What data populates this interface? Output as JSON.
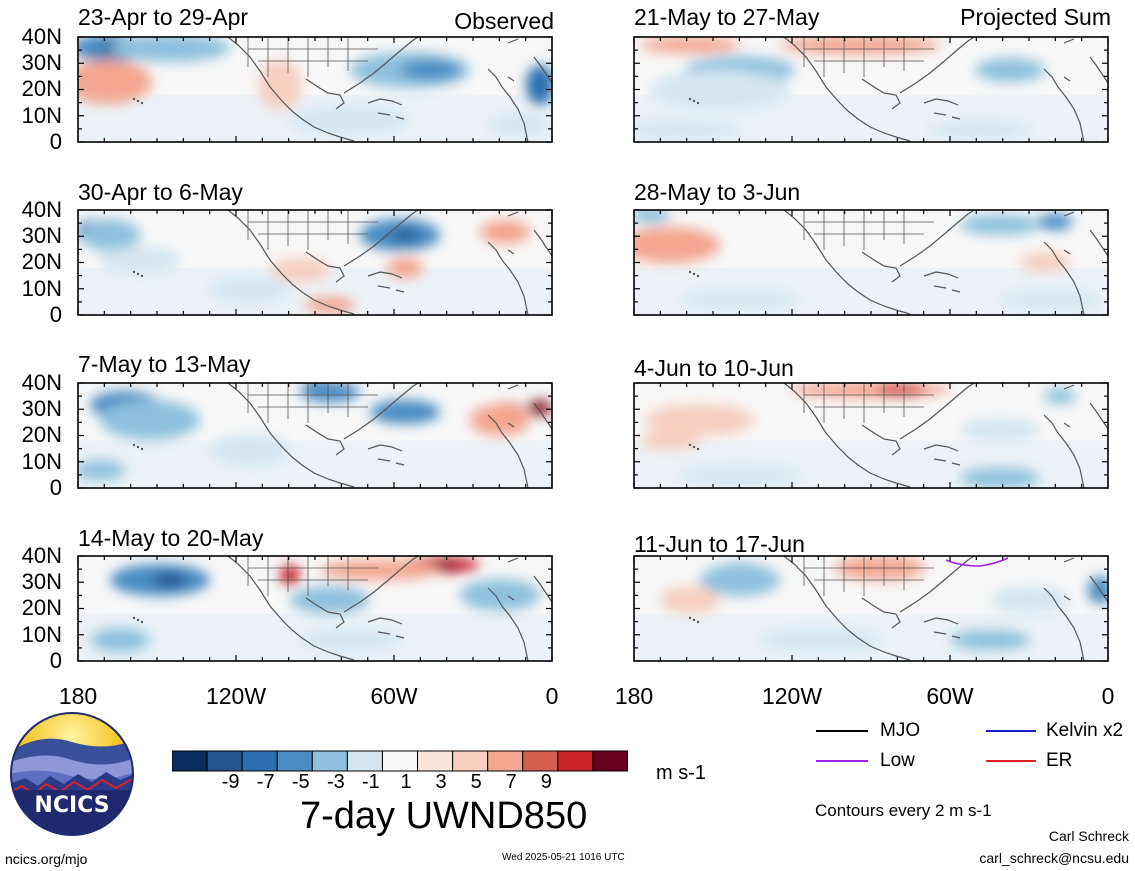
{
  "column_titles": {
    "left": "Observed",
    "right": "Projected Sum"
  },
  "panels": [
    {
      "title": "23-Apr to 29-Apr",
      "col": 0,
      "row": 0,
      "blobs": [
        [
          "#4a8cc3",
          110,
          48,
          38,
          14
        ],
        [
          "#23548f",
          115,
          48,
          14,
          7
        ],
        [
          "#c9242b",
          105,
          82,
          35,
          17
        ],
        [
          "#f3a690",
          108,
          82,
          44,
          22
        ],
        [
          "#8ec1dd",
          170,
          48,
          60,
          14
        ],
        [
          "#8ec1dd",
          410,
          70,
          60,
          18
        ],
        [
          "#4a8cc3",
          430,
          70,
          30,
          10
        ],
        [
          "#2c6fb0",
          540,
          85,
          14,
          20
        ],
        [
          "#f6cfbf",
          280,
          85,
          22,
          25
        ],
        [
          "#d4e6f1",
          350,
          120,
          60,
          15
        ],
        [
          "#d4e6f1",
          520,
          125,
          30,
          12
        ]
      ]
    },
    {
      "title": "30-Apr to 6-May",
      "col": 0,
      "row": 1,
      "blobs": [
        [
          "#2c6fb0",
          92,
          232,
          16,
          12
        ],
        [
          "#8ec1dd",
          110,
          235,
          30,
          16
        ],
        [
          "#d4e6f1",
          140,
          260,
          40,
          14
        ],
        [
          "#4a8cc3",
          400,
          235,
          40,
          16
        ],
        [
          "#23548f",
          405,
          235,
          14,
          6
        ],
        [
          "#f3a690",
          505,
          232,
          25,
          12
        ],
        [
          "#f3a690",
          405,
          268,
          18,
          10
        ],
        [
          "#f3a690",
          330,
          305,
          25,
          8
        ],
        [
          "#d4e6f1",
          250,
          290,
          40,
          14
        ],
        [
          "#f6cfbf",
          300,
          270,
          30,
          12
        ]
      ]
    },
    {
      "title": "7-May to 13-May",
      "col": 0,
      "row": 2,
      "blobs": [
        [
          "#4a8cc3",
          125,
          405,
          35,
          14
        ],
        [
          "#8ec1dd",
          150,
          420,
          50,
          20
        ],
        [
          "#23548f",
          320,
          388,
          16,
          8
        ],
        [
          "#4a8cc3",
          330,
          392,
          30,
          10
        ],
        [
          "#4a8cc3",
          405,
          412,
          35,
          12
        ],
        [
          "#c9242b",
          505,
          413,
          22,
          10
        ],
        [
          "#f3a690",
          500,
          420,
          30,
          16
        ],
        [
          "#8b1a2a",
          540,
          408,
          12,
          8
        ],
        [
          "#d4e6f1",
          250,
          450,
          40,
          16
        ],
        [
          "#8ec1dd",
          100,
          470,
          25,
          10
        ]
      ]
    },
    {
      "title": "14-May to 20-May",
      "col": 0,
      "row": 3,
      "blobs": [
        [
          "#4a8cc3",
          160,
          580,
          50,
          16
        ],
        [
          "#23548f",
          170,
          580,
          18,
          7
        ],
        [
          "#c9242b",
          440,
          565,
          40,
          8
        ],
        [
          "#8b1a2a",
          445,
          565,
          15,
          5
        ],
        [
          "#f3a690",
          380,
          570,
          60,
          10
        ],
        [
          "#c9242b",
          290,
          575,
          10,
          10
        ],
        [
          "#8ec1dd",
          330,
          600,
          40,
          14
        ],
        [
          "#8ec1dd",
          500,
          595,
          40,
          16
        ],
        [
          "#8ec1dd",
          120,
          640,
          30,
          12
        ],
        [
          "#d4e6f1",
          350,
          640,
          50,
          12
        ]
      ]
    },
    {
      "title": "21-May to 27-May",
      "col": 1,
      "row": 0,
      "blobs": [
        [
          "#f3a690",
          690,
          45,
          50,
          8
        ],
        [
          "#f3a690",
          860,
          45,
          80,
          9
        ],
        [
          "#8ec1dd",
          740,
          70,
          55,
          14
        ],
        [
          "#d4e6f1",
          720,
          90,
          70,
          20
        ],
        [
          "#8ec1dd",
          1010,
          70,
          35,
          12
        ],
        [
          "#d4e6f1",
          680,
          130,
          60,
          10
        ],
        [
          "#d4e6f1",
          980,
          130,
          50,
          10
        ]
      ]
    },
    {
      "title": "28-May to 3-Jun",
      "col": 1,
      "row": 1,
      "blobs": [
        [
          "#c9242b",
          680,
          240,
          30,
          10
        ],
        [
          "#f3a690",
          670,
          245,
          50,
          18
        ],
        [
          "#8ec1dd",
          650,
          215,
          20,
          8
        ],
        [
          "#4a8cc3",
          1055,
          222,
          18,
          8
        ],
        [
          "#8ec1dd",
          1000,
          225,
          40,
          10
        ],
        [
          "#f6cfbf",
          1045,
          262,
          25,
          10
        ],
        [
          "#d4e6f1",
          740,
          300,
          60,
          10
        ],
        [
          "#d4e6f1",
          1050,
          300,
          50,
          10
        ]
      ]
    },
    {
      "title": "4-Jun to 10-Jun",
      "col": 1,
      "row": 2,
      "blobs": [
        [
          "#f3a690",
          870,
          390,
          80,
          8
        ],
        [
          "#c9242b",
          900,
          390,
          25,
          5
        ],
        [
          "#8ec1dd",
          1060,
          396,
          16,
          8
        ],
        [
          "#f6cfbf",
          700,
          420,
          55,
          16
        ],
        [
          "#f6cfbf",
          670,
          440,
          30,
          10
        ],
        [
          "#d4e6f1",
          1000,
          430,
          40,
          12
        ],
        [
          "#d4e6f1",
          740,
          475,
          60,
          10
        ],
        [
          "#8ec1dd",
          1000,
          478,
          40,
          10
        ]
      ]
    },
    {
      "title": "11-Jun to 17-Jun",
      "col": 1,
      "row": 3,
      "blobs": [
        [
          "#4a8cc3",
          740,
          575,
          28,
          12
        ],
        [
          "#8ec1dd",
          740,
          580,
          40,
          16
        ],
        [
          "#c9242b",
          885,
          565,
          20,
          8
        ],
        [
          "#f3a690",
          880,
          568,
          45,
          12
        ],
        [
          "#f6cfbf",
          690,
          600,
          30,
          14
        ],
        [
          "#4a8cc3",
          1100,
          590,
          12,
          14
        ],
        [
          "#d4e6f1",
          1030,
          600,
          40,
          14
        ],
        [
          "#d4e6f1",
          820,
          640,
          60,
          12
        ],
        [
          "#8ec1dd",
          990,
          640,
          40,
          10
        ]
      ]
    }
  ],
  "y_labels": [
    "40N",
    "30N",
    "20N",
    "10N",
    "0"
  ],
  "x_labels": [
    "180",
    "120W",
    "60W",
    "0"
  ],
  "colorbar": {
    "colors": [
      "#0b2c5e",
      "#23548f",
      "#2c6fb0",
      "#4a8cc3",
      "#8ec1dd",
      "#d4e6f1",
      "#f7f7f7",
      "#fbe4d8",
      "#f6cfbf",
      "#f3a690",
      "#d6604d",
      "#c9242b",
      "#67001f"
    ],
    "labels": [
      "-9",
      "-7",
      "-5",
      "-3",
      "-1",
      "1",
      "3",
      "5",
      "7",
      "9"
    ],
    "units": "m s-1",
    "title": "7-day UWND850"
  },
  "legend": {
    "items": [
      {
        "label": "MJO",
        "color": "#000000"
      },
      {
        "label": "Kelvin x2",
        "color": "#1a1acc"
      },
      {
        "label": "Low",
        "color": "#a020f0"
      },
      {
        "label": "ER",
        "color": "#e02020"
      }
    ],
    "contours_note": "Contours every 2 m s-1"
  },
  "logo_text": "NCICS",
  "footer": {
    "url": "ncics.org/mjo",
    "timestamp": "Wed 2025-05-21 1016 UTC",
    "author": "Carl Schreck",
    "email": "carl_schreck@ncsu.edu"
  }
}
